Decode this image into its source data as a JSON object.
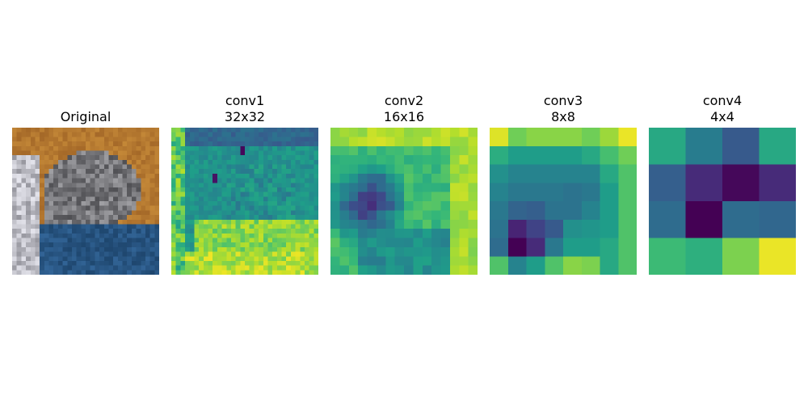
{
  "panels": [
    {
      "title": "Original",
      "subtitle": ""
    },
    {
      "title": "conv1",
      "subtitle": "32x32"
    },
    {
      "title": "conv2",
      "subtitle": "16x16"
    },
    {
      "title": "conv3",
      "subtitle": "8x8"
    },
    {
      "title": "conv4",
      "subtitle": "4x4"
    }
  ],
  "chart_data": [
    {
      "type": "image",
      "title": "Original",
      "description_colors": {
        "background": "#b8722a",
        "cat_gray": "#7d7d80",
        "blanket_blue": "#2e5a8a",
        "white": "#e8e8ea"
      }
    },
    {
      "type": "heatmap",
      "title": "conv1",
      "subtitle": "32x32",
      "colormap": "viridis",
      "grid": 32
    },
    {
      "type": "heatmap",
      "title": "conv2",
      "subtitle": "16x16",
      "colormap": "viridis",
      "grid": 16
    },
    {
      "type": "heatmap",
      "title": "conv3",
      "subtitle": "8x8",
      "colormap": "viridis",
      "grid": 8,
      "values": [
        [
          0.95,
          0.78,
          0.82,
          0.82,
          0.82,
          0.78,
          0.85,
          0.97
        ],
        [
          0.62,
          0.55,
          0.55,
          0.55,
          0.55,
          0.6,
          0.7,
          0.78
        ],
        [
          0.5,
          0.45,
          0.45,
          0.45,
          0.45,
          0.45,
          0.6,
          0.72
        ],
        [
          0.45,
          0.4,
          0.4,
          0.4,
          0.38,
          0.4,
          0.55,
          0.72
        ],
        [
          0.4,
          0.32,
          0.3,
          0.38,
          0.38,
          0.45,
          0.55,
          0.72
        ],
        [
          0.38,
          0.1,
          0.2,
          0.28,
          0.5,
          0.52,
          0.55,
          0.72
        ],
        [
          0.35,
          0.0,
          0.12,
          0.4,
          0.55,
          0.55,
          0.6,
          0.72
        ],
        [
          0.72,
          0.45,
          0.55,
          0.72,
          0.82,
          0.8,
          0.6,
          0.72
        ]
      ]
    },
    {
      "type": "heatmap",
      "title": "conv4",
      "subtitle": "4x4",
      "colormap": "viridis",
      "grid": 4,
      "values": [
        [
          0.6,
          0.42,
          0.28,
          0.6
        ],
        [
          0.3,
          0.12,
          0.02,
          0.12
        ],
        [
          0.35,
          0.0,
          0.35,
          0.33
        ],
        [
          0.68,
          0.63,
          0.8,
          0.97
        ]
      ]
    }
  ]
}
